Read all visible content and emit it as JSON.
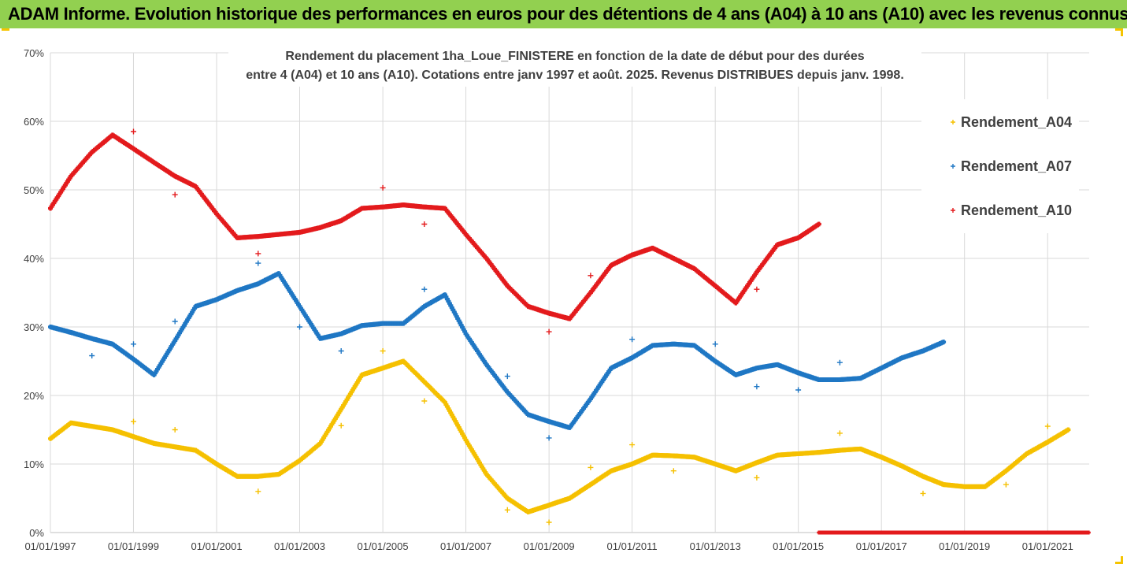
{
  "header": {
    "title": "ADAM Informe. Evolution historique des performances en euros pour des détentions de 4 ans (A04) à 10 ans (A10) avec les revenus connus distribués",
    "background": "#92d050"
  },
  "chart_data": {
    "type": "scatter",
    "title_lines": [
      "Rendement du placement 1ha_Loue_FINISTERE en fonction de la date de début pour des durées",
      "entre 4 (A04) et 10 ans (A10). Cotations entre janv 1997 et août. 2025. Revenus DISTRIBUES depuis janv. 1998."
    ],
    "xlabel": "",
    "ylabel": "",
    "x_ticks": [
      "01/01/1997",
      "01/01/1999",
      "01/01/2001",
      "01/01/2003",
      "01/01/2005",
      "01/01/2007",
      "01/01/2009",
      "01/01/2011",
      "01/01/2013",
      "01/01/2015",
      "01/01/2017",
      "01/01/2019",
      "01/01/2021"
    ],
    "y_ticks": [
      "0%",
      "10%",
      "20%",
      "30%",
      "40%",
      "50%",
      "60%",
      "70%"
    ],
    "xlim": [
      "1997-01-01",
      "2022-01-01"
    ],
    "ylim": [
      0,
      70
    ],
    "grid": true,
    "legend_position": "right",
    "series": [
      {
        "name": "Rendement_A04",
        "color": "#f5c000",
        "points": [
          [
            "1997-01-01",
            13.7
          ],
          [
            "1997-07-01",
            16.0
          ],
          [
            "1998-01-01",
            15.5
          ],
          [
            "1998-07-01",
            15.0
          ],
          [
            "1999-01-01",
            14.0
          ],
          [
            "1999-07-01",
            13.0
          ],
          [
            "2000-01-01",
            12.5
          ],
          [
            "2000-07-01",
            12.0
          ],
          [
            "2001-01-01",
            10.0
          ],
          [
            "2001-07-01",
            8.2
          ],
          [
            "2002-01-01",
            8.2
          ],
          [
            "2002-07-01",
            8.5
          ],
          [
            "2003-01-01",
            10.5
          ],
          [
            "2003-07-01",
            13.0
          ],
          [
            "2004-01-01",
            18.0
          ],
          [
            "2004-07-01",
            23.0
          ],
          [
            "2005-01-01",
            24.0
          ],
          [
            "2005-07-01",
            25.0
          ],
          [
            "2006-01-01",
            22.0
          ],
          [
            "2006-07-01",
            19.0
          ],
          [
            "2007-01-01",
            13.5
          ],
          [
            "2007-07-01",
            8.5
          ],
          [
            "2008-01-01",
            5.0
          ],
          [
            "2008-07-01",
            3.0
          ],
          [
            "2009-01-01",
            4.0
          ],
          [
            "2009-07-01",
            5.0
          ],
          [
            "2010-01-01",
            7.0
          ],
          [
            "2010-07-01",
            9.0
          ],
          [
            "2011-01-01",
            10.0
          ],
          [
            "2011-07-01",
            11.3
          ],
          [
            "2012-01-01",
            11.2
          ],
          [
            "2012-07-01",
            11.0
          ],
          [
            "2013-01-01",
            10.0
          ],
          [
            "2013-07-01",
            9.0
          ],
          [
            "2014-01-01",
            10.2
          ],
          [
            "2014-07-01",
            11.3
          ],
          [
            "2015-01-01",
            11.5
          ],
          [
            "2015-07-01",
            11.7
          ],
          [
            "2016-01-01",
            12.0
          ],
          [
            "2016-07-01",
            12.2
          ],
          [
            "2017-01-01",
            11.0
          ],
          [
            "2017-07-01",
            9.7
          ],
          [
            "2018-01-01",
            8.2
          ],
          [
            "2018-07-01",
            7.0
          ],
          [
            "2019-01-01",
            6.7
          ],
          [
            "2019-07-01",
            6.7
          ],
          [
            "2020-01-01",
            9.0
          ],
          [
            "2020-07-01",
            11.5
          ],
          [
            "2021-01-01",
            13.2
          ],
          [
            "2021-07-01",
            15.0
          ]
        ],
        "outliers": [
          [
            "1999-01-01",
            16.2
          ],
          [
            "2000-01-01",
            15.0
          ],
          [
            "2002-01-01",
            6.0
          ],
          [
            "2004-01-01",
            15.6
          ],
          [
            "2005-01-01",
            26.5
          ],
          [
            "2006-01-01",
            19.2
          ],
          [
            "2008-01-01",
            3.3
          ],
          [
            "2009-01-01",
            1.5
          ],
          [
            "2010-01-01",
            9.5
          ],
          [
            "2011-01-01",
            12.8
          ],
          [
            "2012-01-01",
            9.0
          ],
          [
            "2014-01-01",
            8.0
          ],
          [
            "2016-01-01",
            14.5
          ],
          [
            "2018-01-01",
            5.7
          ],
          [
            "2020-01-01",
            7.0
          ],
          [
            "2021-01-01",
            15.5
          ]
        ]
      },
      {
        "name": "Rendement_A07",
        "color": "#1f77c4",
        "points": [
          [
            "1997-01-01",
            30.0
          ],
          [
            "1997-07-01",
            29.2
          ],
          [
            "1998-01-01",
            28.3
          ],
          [
            "1998-07-01",
            27.5
          ],
          [
            "1999-01-01",
            25.3
          ],
          [
            "1999-07-01",
            23.0
          ],
          [
            "2000-01-01",
            28.0
          ],
          [
            "2000-07-01",
            33.0
          ],
          [
            "2001-01-01",
            34.0
          ],
          [
            "2001-07-01",
            35.3
          ],
          [
            "2002-01-01",
            36.3
          ],
          [
            "2002-07-01",
            37.8
          ],
          [
            "2003-01-01",
            33.0
          ],
          [
            "2003-07-01",
            28.3
          ],
          [
            "2004-01-01",
            29.0
          ],
          [
            "2004-07-01",
            30.2
          ],
          [
            "2005-01-01",
            30.5
          ],
          [
            "2005-07-01",
            30.5
          ],
          [
            "2006-01-01",
            33.0
          ],
          [
            "2006-07-01",
            34.7
          ],
          [
            "2007-01-01",
            29.0
          ],
          [
            "2007-07-01",
            24.5
          ],
          [
            "2008-01-01",
            20.5
          ],
          [
            "2008-07-01",
            17.2
          ],
          [
            "2009-01-01",
            16.2
          ],
          [
            "2009-07-01",
            15.3
          ],
          [
            "2010-01-01",
            19.5
          ],
          [
            "2010-07-01",
            24.0
          ],
          [
            "2011-01-01",
            25.5
          ],
          [
            "2011-07-01",
            27.3
          ],
          [
            "2012-01-01",
            27.5
          ],
          [
            "2012-07-01",
            27.3
          ],
          [
            "2013-01-01",
            25.0
          ],
          [
            "2013-07-01",
            23.0
          ],
          [
            "2014-01-01",
            24.0
          ],
          [
            "2014-07-01",
            24.5
          ],
          [
            "2015-01-01",
            23.3
          ],
          [
            "2015-07-01",
            22.3
          ],
          [
            "2016-01-01",
            22.3
          ],
          [
            "2016-07-01",
            22.5
          ],
          [
            "2017-01-01",
            24.0
          ],
          [
            "2017-07-01",
            25.5
          ],
          [
            "2018-01-01",
            26.5
          ],
          [
            "2018-07-01",
            27.8
          ]
        ],
        "outliers": [
          [
            "1998-01-01",
            25.8
          ],
          [
            "1999-01-01",
            27.5
          ],
          [
            "2000-01-01",
            30.8
          ],
          [
            "2002-01-01",
            39.3
          ],
          [
            "2003-01-01",
            30.0
          ],
          [
            "2004-01-01",
            26.5
          ],
          [
            "2006-01-01",
            35.5
          ],
          [
            "2008-01-01",
            22.8
          ],
          [
            "2009-01-01",
            13.8
          ],
          [
            "2011-01-01",
            28.2
          ],
          [
            "2013-01-01",
            27.5
          ],
          [
            "2014-01-01",
            21.3
          ],
          [
            "2015-01-01",
            20.8
          ],
          [
            "2016-01-01",
            24.8
          ]
        ]
      },
      {
        "name": "Rendement_A10",
        "color": "#e31a1c",
        "points": [
          [
            "1997-01-01",
            47.3
          ],
          [
            "1997-07-01",
            52.0
          ],
          [
            "1998-01-01",
            55.5
          ],
          [
            "1998-07-01",
            58.0
          ],
          [
            "1999-01-01",
            56.0
          ],
          [
            "1999-07-01",
            54.0
          ],
          [
            "2000-01-01",
            52.0
          ],
          [
            "2000-07-01",
            50.5
          ],
          [
            "2001-01-01",
            46.5
          ],
          [
            "2001-07-01",
            43.0
          ],
          [
            "2002-01-01",
            43.2
          ],
          [
            "2002-07-01",
            43.5
          ],
          [
            "2003-01-01",
            43.8
          ],
          [
            "2003-07-01",
            44.5
          ],
          [
            "2004-01-01",
            45.5
          ],
          [
            "2004-07-01",
            47.3
          ],
          [
            "2005-01-01",
            47.5
          ],
          [
            "2005-07-01",
            47.8
          ],
          [
            "2006-01-01",
            47.5
          ],
          [
            "2006-07-01",
            47.3
          ],
          [
            "2007-01-01",
            43.5
          ],
          [
            "2007-07-01",
            40.0
          ],
          [
            "2008-01-01",
            36.0
          ],
          [
            "2008-07-01",
            33.0
          ],
          [
            "2009-01-01",
            32.0
          ],
          [
            "2009-07-01",
            31.2
          ],
          [
            "2010-01-01",
            35.0
          ],
          [
            "2010-07-01",
            39.0
          ],
          [
            "2011-01-01",
            40.5
          ],
          [
            "2011-07-01",
            41.5
          ],
          [
            "2012-01-01",
            40.0
          ],
          [
            "2012-07-01",
            38.5
          ],
          [
            "2013-01-01",
            36.0
          ],
          [
            "2013-07-01",
            33.5
          ],
          [
            "2014-01-01",
            38.0
          ],
          [
            "2014-07-01",
            42.0
          ],
          [
            "2015-01-01",
            43.0
          ],
          [
            "2015-07-01",
            45.0
          ]
        ],
        "outliers": [
          [
            "1999-01-01",
            58.5
          ],
          [
            "2000-01-01",
            49.3
          ],
          [
            "2002-01-01",
            40.7
          ],
          [
            "2005-01-01",
            50.3
          ],
          [
            "2006-01-01",
            45.0
          ],
          [
            "2009-01-01",
            29.3
          ],
          [
            "2010-01-01",
            37.5
          ],
          [
            "2014-01-01",
            35.5
          ]
        ],
        "zero_segment": [
          "2015-07-01",
          "2022-01-01"
        ]
      }
    ]
  }
}
